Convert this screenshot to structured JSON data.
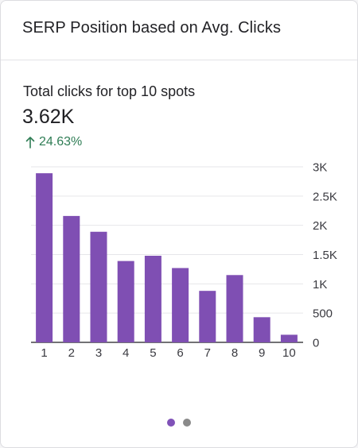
{
  "card": {
    "title": "SERP Position based on Avg. Clicks"
  },
  "metric": {
    "label": "Total clicks for top 10 spots",
    "value": "3.62K",
    "change": "24.63%",
    "change_color": "#2f7d55",
    "change_icon": "arrow-up-icon"
  },
  "pager": {
    "pages": 2,
    "active_index": 0,
    "active_color": "#8052b8",
    "inactive_color": "#8a8a8a"
  },
  "chart_data": {
    "type": "bar",
    "categories": [
      "1",
      "2",
      "3",
      "4",
      "5",
      "6",
      "7",
      "8",
      "9",
      "10"
    ],
    "values": [
      2890,
      2160,
      1890,
      1390,
      1480,
      1270,
      880,
      1150,
      430,
      130
    ],
    "ylim": [
      0,
      3000
    ],
    "yticks": [
      0,
      500,
      1000,
      1500,
      2000,
      2500,
      3000
    ],
    "ytick_labels": [
      "0",
      "500",
      "1K",
      "1.5K",
      "2K",
      "2.5K",
      "3K"
    ],
    "y_axis_position": "right",
    "grid": true,
    "legend": "none",
    "bar_color": "#7f4fb3"
  }
}
